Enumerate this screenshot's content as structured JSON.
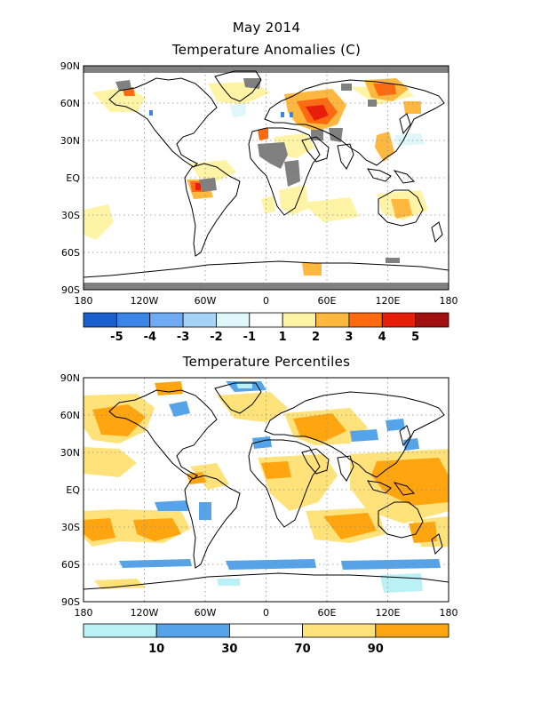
{
  "page": {
    "title": "May 2014",
    "subtitle": "Temperature Anomalies (C)"
  },
  "anomaly_map": {
    "lat_labels": [
      "90N",
      "60N",
      "30N",
      "EQ",
      "30S",
      "60S",
      "90S"
    ],
    "lon_labels": [
      "180",
      "120W",
      "60W",
      "0",
      "60E",
      "120E",
      "180"
    ],
    "colorbar": {
      "colors": [
        "#1a5fcc",
        "#3c85e6",
        "#6fabf2",
        "#a6d3f7",
        "#dff7fb",
        "#ffffff",
        "#fff3a6",
        "#ffb83f",
        "#ff6a10",
        "#e61e0a",
        "#a01010"
      ],
      "labels": [
        "-5",
        "-4",
        "-3",
        "-2",
        "-1",
        "1",
        "2",
        "3",
        "4",
        "5"
      ]
    }
  },
  "percentile_map": {
    "title": "Temperature Percentiles",
    "lat_labels": [
      "90N",
      "60N",
      "30N",
      "EQ",
      "30S",
      "60S",
      "90S"
    ],
    "lon_labels": [
      "180",
      "120W",
      "60W",
      "0",
      "60E",
      "120E",
      "180"
    ],
    "colorbar": {
      "colors": [
        "#b9f1f7",
        "#55a4ea",
        "#ffffff",
        "#ffe27a",
        "#ffa50f"
      ],
      "labels": [
        "10",
        "30",
        "70",
        "90"
      ]
    }
  }
}
